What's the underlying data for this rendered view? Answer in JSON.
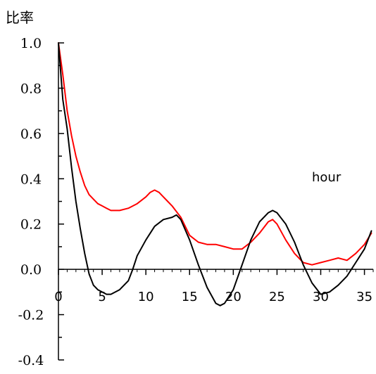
{
  "chart_data": {
    "type": "line",
    "ylabel": "比率",
    "xlabel": "hour",
    "xlim": [
      0,
      36
    ],
    "ylim": [
      -0.4,
      1.0
    ],
    "x_ticks": [
      0,
      5,
      10,
      15,
      20,
      25,
      30,
      35
    ],
    "x_tick_labels": [
      "0",
      "5",
      "10",
      "15",
      "20",
      "25",
      "30",
      "35"
    ],
    "y_ticks": [
      1.0,
      0.8,
      0.6,
      0.4,
      0.2,
      0.0,
      -0.2,
      -0.4
    ],
    "y_tick_labels": [
      "1.0",
      "0.8",
      "0.6",
      "0.4",
      "0.2",
      "0.0",
      "-0.2",
      "-0.4"
    ],
    "grid": false,
    "legend": "none",
    "series": [
      {
        "color": "#ff0000",
        "x": [
          0,
          0.5,
          1,
          1.5,
          2,
          2.5,
          3,
          3.5,
          4,
          4.5,
          5,
          5.5,
          6,
          6.5,
          7,
          8,
          9,
          10,
          10.5,
          11,
          11.5,
          12,
          12.5,
          13,
          14,
          15,
          16,
          17,
          18,
          19,
          20,
          21,
          22,
          23,
          24,
          24.5,
          25,
          26,
          27,
          28,
          29,
          30,
          31,
          32,
          33,
          34,
          35,
          35.8
        ],
        "values": [
          1.0,
          0.86,
          0.7,
          0.59,
          0.5,
          0.43,
          0.37,
          0.33,
          0.31,
          0.29,
          0.28,
          0.27,
          0.26,
          0.26,
          0.26,
          0.27,
          0.29,
          0.32,
          0.34,
          0.35,
          0.34,
          0.32,
          0.3,
          0.28,
          0.23,
          0.15,
          0.12,
          0.11,
          0.11,
          0.1,
          0.09,
          0.09,
          0.12,
          0.16,
          0.21,
          0.22,
          0.2,
          0.13,
          0.07,
          0.03,
          0.02,
          0.03,
          0.04,
          0.05,
          0.04,
          0.07,
          0.11,
          0.16
        ]
      },
      {
        "color": "#000000",
        "x": [
          0,
          0.5,
          1,
          1.5,
          2,
          2.5,
          3,
          3.5,
          4,
          4.5,
          5,
          5.5,
          6,
          7,
          8,
          8.5,
          9,
          10,
          11,
          12,
          13,
          13.5,
          14,
          15,
          16,
          17,
          18,
          18.5,
          19,
          20,
          21,
          22,
          23,
          24,
          24.5,
          25,
          26,
          27,
          28,
          29,
          30,
          31,
          32,
          33,
          34,
          35,
          35.8
        ],
        "values": [
          1.0,
          0.75,
          0.62,
          0.45,
          0.3,
          0.18,
          0.07,
          -0.02,
          -0.07,
          -0.09,
          -0.1,
          -0.11,
          -0.11,
          -0.09,
          -0.05,
          0.0,
          0.06,
          0.13,
          0.19,
          0.22,
          0.23,
          0.24,
          0.22,
          0.13,
          0.02,
          -0.08,
          -0.15,
          -0.16,
          -0.15,
          -0.09,
          0.02,
          0.13,
          0.21,
          0.25,
          0.26,
          0.25,
          0.2,
          0.12,
          0.02,
          -0.06,
          -0.11,
          -0.1,
          -0.07,
          -0.03,
          0.03,
          0.09,
          0.17
        ]
      }
    ]
  }
}
